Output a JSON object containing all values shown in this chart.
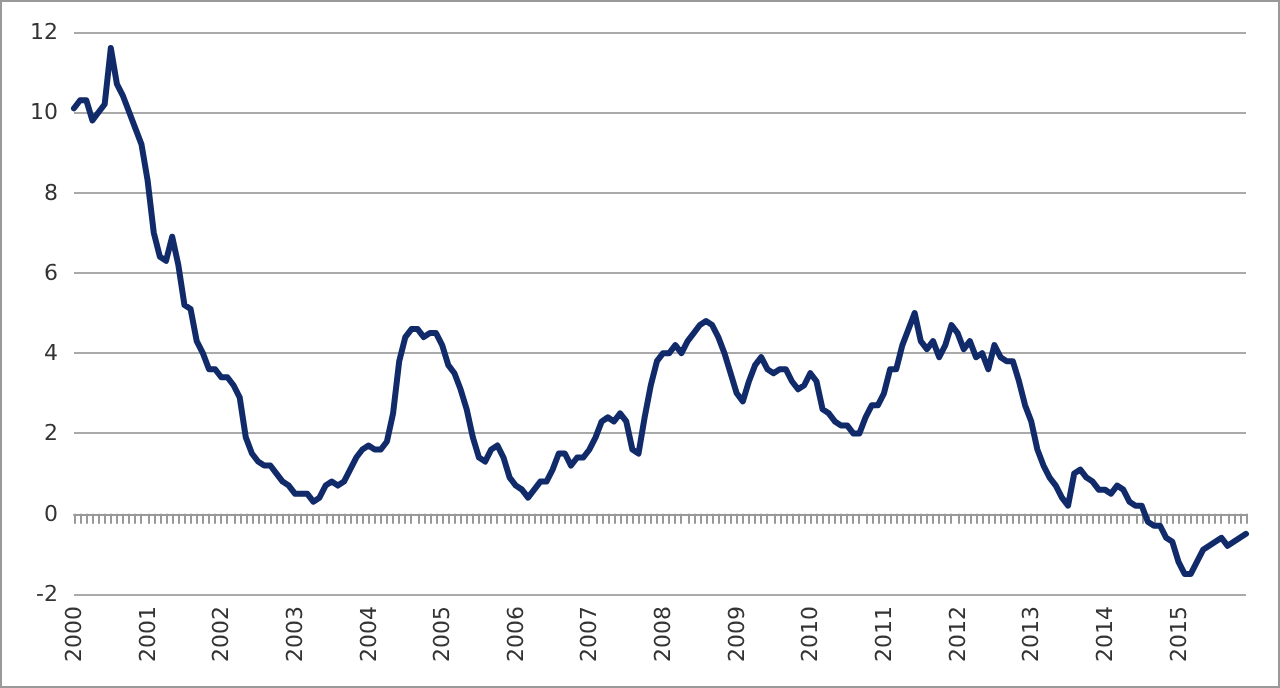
{
  "chart_data": {
    "type": "line",
    "categories": [
      "2000",
      null,
      null,
      null,
      null,
      null,
      null,
      null,
      null,
      null,
      null,
      null,
      "2001",
      null,
      null,
      null,
      null,
      null,
      null,
      null,
      null,
      null,
      null,
      null,
      "2002",
      null,
      null,
      null,
      null,
      null,
      null,
      null,
      null,
      null,
      null,
      null,
      "2003",
      null,
      null,
      null,
      null,
      null,
      null,
      null,
      null,
      null,
      null,
      null,
      "2004",
      null,
      null,
      null,
      null,
      null,
      null,
      null,
      null,
      null,
      null,
      null,
      "2005",
      null,
      null,
      null,
      null,
      null,
      null,
      null,
      null,
      null,
      null,
      null,
      "2006",
      null,
      null,
      null,
      null,
      null,
      null,
      null,
      null,
      null,
      null,
      null,
      "2007",
      null,
      null,
      null,
      null,
      null,
      null,
      null,
      null,
      null,
      null,
      null,
      "2008",
      null,
      null,
      null,
      null,
      null,
      null,
      null,
      null,
      null,
      null,
      null,
      "2009",
      null,
      null,
      null,
      null,
      null,
      null,
      null,
      null,
      null,
      null,
      null,
      "2010",
      null,
      null,
      null,
      null,
      null,
      null,
      null,
      null,
      null,
      null,
      null,
      "2011",
      null,
      null,
      null,
      null,
      null,
      null,
      null,
      null,
      null,
      null,
      null,
      "2012",
      null,
      null,
      null,
      null,
      null,
      null,
      null,
      null,
      null,
      null,
      null,
      "2013",
      null,
      null,
      null,
      null,
      null,
      null,
      null,
      null,
      null,
      null,
      null,
      "2014",
      null,
      null,
      null,
      null,
      null,
      null,
      null,
      null,
      null,
      null,
      null,
      "2015",
      null,
      null,
      null,
      null,
      null,
      null,
      null,
      null,
      null,
      null,
      null
    ],
    "series": [
      {
        "color": "#112a6a",
        "values": [
          10.1,
          10.3,
          10.3,
          9.8,
          10.0,
          10.2,
          11.6,
          10.7,
          10.4,
          10.0,
          9.6,
          9.2,
          8.3,
          7.0,
          6.4,
          6.3,
          6.9,
          6.2,
          5.2,
          5.1,
          4.3,
          4.0,
          3.6,
          3.6,
          3.4,
          3.4,
          3.2,
          2.9,
          1.9,
          1.5,
          1.3,
          1.2,
          1.2,
          1.0,
          0.8,
          0.7,
          0.5,
          0.5,
          0.5,
          0.3,
          0.4,
          0.7,
          0.8,
          0.7,
          0.8,
          1.1,
          1.4,
          1.6,
          1.7,
          1.6,
          1.6,
          1.8,
          2.5,
          3.8,
          4.4,
          4.6,
          4.6,
          4.4,
          4.5,
          4.5,
          4.2,
          3.7,
          3.5,
          3.1,
          2.6,
          1.9,
          1.4,
          1.3,
          1.6,
          1.7,
          1.4,
          0.9,
          0.7,
          0.6,
          0.4,
          0.6,
          0.8,
          0.8,
          1.1,
          1.5,
          1.5,
          1.2,
          1.4,
          1.4,
          1.6,
          1.9,
          2.3,
          2.4,
          2.3,
          2.5,
          2.3,
          1.6,
          1.5,
          2.4,
          3.2,
          3.8,
          4.0,
          4.0,
          4.2,
          4.0,
          4.3,
          4.5,
          4.7,
          4.8,
          4.7,
          4.4,
          4.0,
          3.5,
          3.0,
          2.8,
          3.3,
          3.7,
          3.9,
          3.6,
          3.5,
          3.6,
          3.6,
          3.3,
          3.1,
          3.2,
          3.5,
          3.3,
          2.6,
          2.5,
          2.3,
          2.2,
          2.2,
          2.0,
          2.0,
          2.4,
          2.7,
          2.7,
          3.0,
          3.6,
          3.6,
          4.2,
          4.6,
          5.0,
          4.3,
          4.1,
          4.3,
          3.9,
          4.2,
          4.7,
          4.5,
          4.1,
          4.3,
          3.9,
          4.0,
          3.6,
          4.2,
          3.9,
          3.8,
          3.8,
          3.3,
          2.7,
          2.3,
          1.6,
          1.2,
          0.9,
          0.7,
          0.4,
          0.2,
          1.0,
          1.1,
          0.9,
          0.8,
          0.6,
          0.6,
          0.5,
          0.7,
          0.6,
          0.3,
          0.2,
          0.2,
          -0.2,
          -0.3,
          -0.3,
          -0.6,
          -0.7,
          -1.2,
          -1.5,
          -1.5,
          -1.2,
          -0.9,
          -0.8,
          -0.7,
          -0.6,
          -0.8,
          -0.7,
          -0.6,
          -0.5
        ]
      }
    ],
    "ylim": [
      -2,
      12
    ],
    "yticks": [
      -2,
      0,
      2,
      4,
      6,
      8,
      10,
      12
    ],
    "grid": "y",
    "marker": "none",
    "line_style": "solid"
  }
}
